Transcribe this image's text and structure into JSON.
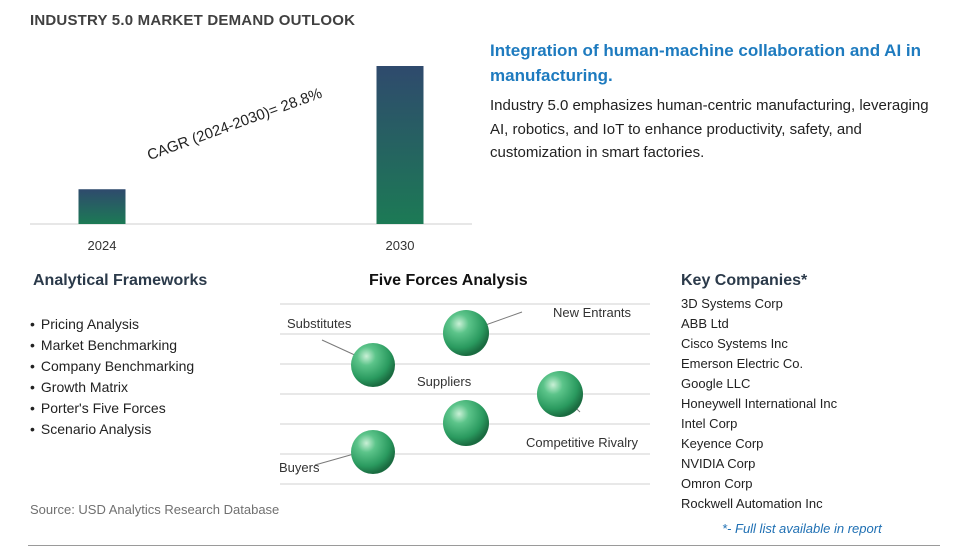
{
  "header": {
    "title": "INDUSTRY 5.0 MARKET DEMAND OUTLOOK"
  },
  "chart_data": {
    "type": "bar",
    "categories": [
      "2024",
      "2030"
    ],
    "values": [
      0.22,
      1.0
    ],
    "annotation": "CAGR (2024-2030)=  28.8%",
    "bar_colors": [
      "#1c6b53",
      "#2f4a6d"
    ]
  },
  "highlight": {
    "headline": "Integration of human-machine collaboration and AI in manufacturing.",
    "description": "Industry 5.0 emphasizes human-centric manufacturing, leveraging AI, robotics, and IoT to enhance productivity, safety, and customization in smart factories."
  },
  "analytical_frameworks": {
    "title": "Analytical Frameworks",
    "items": [
      "Pricing Analysis",
      "Market Benchmarking",
      "Company Benchmarking",
      "Growth Matrix",
      "Porter's Five Forces",
      "Scenario Analysis"
    ]
  },
  "five_forces": {
    "title": "Five Forces Analysis",
    "labels": {
      "substitutes": "Substitutes",
      "new_entrants": "New Entrants",
      "suppliers": "Suppliers",
      "competitive_rivalry": "Competitive Rivalry",
      "buyers": "Buyers"
    },
    "sphere_color": "#3aa870"
  },
  "key_companies": {
    "title": "Key Companies*",
    "items": [
      "3D Systems Corp",
      "ABB Ltd",
      "Cisco Systems Inc",
      "Emerson Electric Co.",
      "Google LLC",
      "Honeywell International Inc",
      "Intel Corp",
      "Keyence Corp",
      "NVIDIA Corp",
      "Omron Corp",
      "Rockwell Automation Inc"
    ],
    "footnote": "*- Full list available in report"
  },
  "source": "Source: USD Analytics Research Database"
}
